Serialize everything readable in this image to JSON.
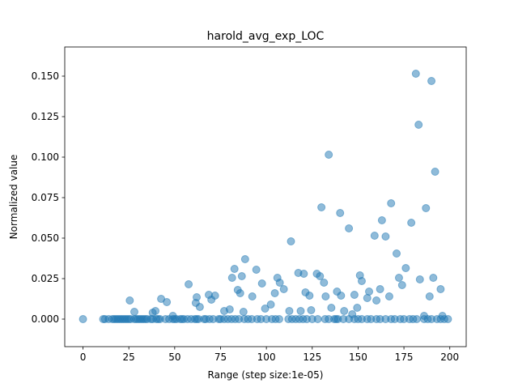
{
  "chart_data": {
    "type": "scatter",
    "title": "harold_avg_exp_LOC",
    "x_label": "Range (step size:1e-05)",
    "y_label": "Normalized value",
    "color": "#1f77b4",
    "alpha": 0.5,
    "grid": false,
    "xlim": [
      -9.95,
      208.95
    ],
    "ylim": [
      -0.017,
      0.168
    ],
    "xticks": [
      0,
      25,
      50,
      75,
      100,
      125,
      150,
      175,
      200
    ],
    "yticks": [
      {
        "value": 0,
        "label": "0.000"
      },
      0.025,
      {
        "value": 0.05,
        "label": "0.050"
      },
      0.075,
      {
        "value": 0.1,
        "label": "0.100"
      },
      0.125,
      {
        "value": 0.15,
        "label": "0.150"
      }
    ],
    "x": [
      0,
      11,
      12,
      14,
      16,
      17,
      18,
      19,
      20,
      21,
      22,
      23,
      24,
      25,
      26,
      28,
      29,
      30,
      31,
      32,
      33,
      34,
      35,
      37,
      38,
      40,
      41,
      42,
      45,
      47,
      49,
      50,
      51,
      53,
      54,
      55,
      57,
      59,
      61,
      62,
      63,
      66,
      67,
      69,
      71,
      74,
      75,
      77,
      79,
      81,
      83,
      85,
      88,
      90,
      92,
      95,
      97,
      100,
      103,
      105,
      107,
      112,
      114,
      116,
      118,
      120,
      122,
      125,
      128,
      132,
      134,
      137,
      138,
      139,
      142,
      145,
      148,
      150,
      152,
      155,
      157,
      160,
      162,
      165,
      168,
      170,
      173,
      175,
      178,
      180,
      182,
      186,
      188,
      190,
      193,
      195,
      197,
      199,
      25.5,
      28,
      38,
      39.5,
      42.6,
      45.7,
      49,
      57.6,
      62,
      61.5,
      63.7,
      68.6,
      70,
      72,
      77,
      80,
      81.3,
      82.6,
      84.4,
      85.7,
      86.6,
      88.4,
      87.5,
      92.3,
      94.5,
      97.6,
      99.3,
      102.4,
      104.6,
      106,
      107.3,
      109.5,
      113.4,
      112.5,
      117.4,
      120.4,
      118.7,
      121.3,
      123.5,
      124.4,
      127.5,
      129.2,
      130,
      131.4,
      132.3,
      134,
      135.4,
      138.5,
      140.2,
      140.7,
      142.4,
      145,
      146.8,
      148,
      149.5,
      151,
      152,
      155,
      156,
      159,
      160,
      162,
      163,
      165,
      167,
      168,
      171,
      172.3,
      174,
      176,
      179,
      181.5,
      183,
      183.7,
      186,
      187,
      189,
      190,
      191,
      192,
      195,
      196
    ],
    "values": [
      0,
      0,
      0,
      0,
      0,
      0,
      0,
      0,
      0,
      0,
      0,
      0,
      0,
      0,
      0,
      0,
      0,
      0,
      0,
      0,
      0,
      0,
      0,
      0,
      0,
      0,
      0,
      0,
      0,
      0,
      0,
      0,
      0,
      0,
      0,
      0,
      0,
      0,
      0,
      0,
      0,
      0,
      0,
      0,
      0,
      0,
      0,
      0,
      0,
      0,
      0,
      0,
      0,
      0,
      0,
      0,
      0,
      0,
      0,
      0,
      0,
      0,
      0,
      0,
      0,
      0,
      0,
      0,
      0,
      0,
      0,
      0,
      0,
      0,
      0,
      0,
      0,
      0,
      0,
      0,
      0,
      0,
      0,
      0,
      0,
      0,
      0,
      0,
      0,
      0,
      0,
      0,
      0,
      0,
      0,
      0,
      0,
      0,
      0.0115,
      0.0045,
      0.004,
      0.005,
      0.0125,
      0.0105,
      0.002,
      0.0215,
      0.0135,
      0.01,
      0.0075,
      0.015,
      0.012,
      0.0145,
      0.005,
      0.006,
      0.0255,
      0.031,
      0.018,
      0.016,
      0.0265,
      0.037,
      0.0045,
      0.014,
      0.0305,
      0.022,
      0.0065,
      0.009,
      0.016,
      0.0255,
      0.0225,
      0.0185,
      0.048,
      0.005,
      0.0285,
      0.028,
      0.005,
      0.0165,
      0.0145,
      0.0055,
      0.028,
      0.0265,
      0.069,
      0.0225,
      0.014,
      0.1015,
      0.007,
      0.017,
      0.0655,
      0.0145,
      0.005,
      0.056,
      0.003,
      0.015,
      0.007,
      0.027,
      0.0235,
      0.013,
      0.017,
      0.0515,
      0.0115,
      0.0185,
      0.061,
      0.051,
      0.014,
      0.0715,
      0.0405,
      0.0255,
      0.021,
      0.0315,
      0.0595,
      0.1515,
      0.12,
      0.0245,
      0.002,
      0.0685,
      0.014,
      0.147,
      0.0255,
      0.091,
      0.0185,
      0.002
    ]
  }
}
